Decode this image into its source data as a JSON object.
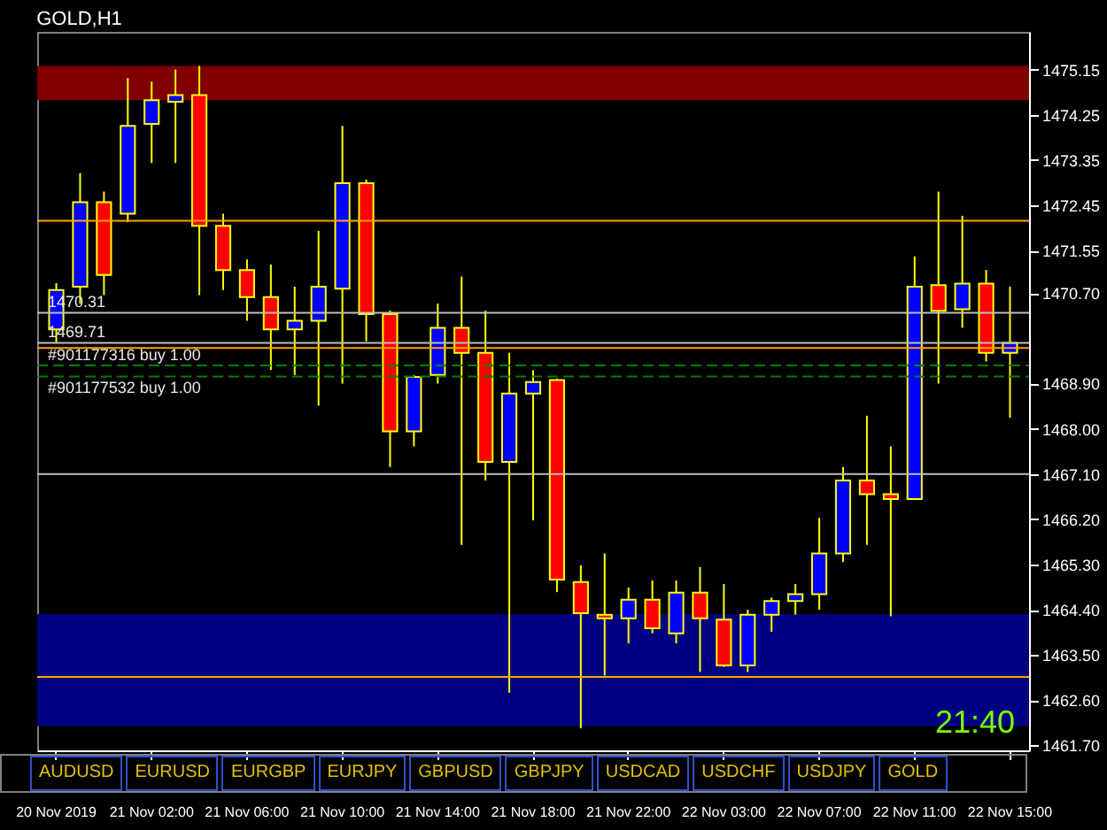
{
  "chart_data": {
    "type": "candlestick",
    "title": "GOLD,H1",
    "categories": [
      "20 Nov 2019",
      null,
      null,
      null,
      "21 Nov 02:00",
      null,
      null,
      null,
      "21 Nov 06:00",
      null,
      null,
      null,
      "21 Nov 10:00",
      null,
      null,
      null,
      "21 Nov 14:00",
      null,
      null,
      null,
      "21 Nov 18:00",
      null,
      null,
      null,
      "21 Nov 22:00",
      null,
      null,
      null,
      "22 Nov 03:00",
      null,
      null,
      null,
      "22 Nov 07:00",
      null,
      null,
      null,
      "22 Nov 11:00",
      null,
      null,
      null,
      "22 Nov 15:00"
    ],
    "ohlc": [
      [
        1469.98,
        1470.9,
        1469.7,
        1470.76
      ],
      [
        1470.83,
        1473.09,
        1470.49,
        1472.51
      ],
      [
        1472.51,
        1472.72,
        1470.66,
        1471.06
      ],
      [
        1472.28,
        1474.98,
        1472.11,
        1474.03
      ],
      [
        1474.07,
        1474.91,
        1473.29,
        1474.54
      ],
      [
        1474.51,
        1475.15,
        1473.29,
        1474.64
      ],
      [
        1474.64,
        1475.22,
        1470.66,
        1472.04
      ],
      [
        1472.04,
        1472.28,
        1470.76,
        1471.16
      ],
      [
        1471.16,
        1471.37,
        1470.15,
        1470.62
      ],
      [
        1470.62,
        1471.27,
        1469.17,
        1469.98
      ],
      [
        1469.98,
        1470.83,
        1469.07,
        1470.15
      ],
      [
        1470.15,
        1471.94,
        1468.46,
        1470.83
      ],
      [
        1470.79,
        1474.03,
        1468.9,
        1472.89
      ],
      [
        1472.89,
        1472.96,
        1469.74,
        1470.28
      ],
      [
        1470.28,
        1470.35,
        1467.24,
        1467.95
      ],
      [
        1467.95,
        1469.07,
        1467.65,
        1469.03
      ],
      [
        1469.07,
        1470.49,
        1468.9,
        1470.01
      ],
      [
        1470.01,
        1471.03,
        1465.69,
        1469.51
      ],
      [
        1469.51,
        1470.35,
        1466.97,
        1467.34
      ],
      [
        1467.34,
        1469.51,
        1462.75,
        1468.7
      ],
      [
        1468.7,
        1469.17,
        1466.18,
        1468.93
      ],
      [
        1468.97,
        1469.0,
        1464.75,
        1465.0
      ],
      [
        1464.95,
        1465.28,
        1462.04,
        1464.33
      ],
      [
        1464.3,
        1465.52,
        1463.09,
        1464.23
      ],
      [
        1464.23,
        1464.84,
        1463.73,
        1464.6
      ],
      [
        1464.6,
        1464.98,
        1463.93,
        1464.03
      ],
      [
        1463.93,
        1464.98,
        1463.73,
        1464.74
      ],
      [
        1464.74,
        1465.25,
        1463.16,
        1464.23
      ],
      [
        1464.2,
        1464.91,
        1463.26,
        1463.29
      ],
      [
        1463.29,
        1464.4,
        1463.16,
        1464.3
      ],
      [
        1464.3,
        1464.64,
        1463.96,
        1464.57
      ],
      [
        1464.57,
        1464.91,
        1464.3,
        1464.71
      ],
      [
        1464.71,
        1466.23,
        1464.4,
        1465.52
      ],
      [
        1465.52,
        1467.24,
        1465.35,
        1466.97
      ],
      [
        1466.97,
        1468.26,
        1465.69,
        1466.7
      ],
      [
        1466.7,
        1467.65,
        1464.27,
        1466.6
      ],
      [
        1466.6,
        1471.43,
        1466.6,
        1470.83
      ],
      [
        1470.86,
        1472.72,
        1468.9,
        1470.35
      ],
      [
        1470.38,
        1472.24,
        1470.01,
        1470.89
      ],
      [
        1470.89,
        1471.16,
        1469.34,
        1469.51
      ],
      [
        1469.51,
        1470.83,
        1468.22,
        1469.71
      ]
    ],
    "colors": [
      "#0000ff",
      "#0000ff",
      "#ff0000",
      "#0000ff",
      "#0000ff",
      "#0000ff",
      "#ff0000",
      "#ff0000",
      "#ff0000",
      "#ff0000",
      "#0000ff",
      "#0000ff",
      "#0000ff",
      "#ff0000",
      "#ff0000",
      "#0000ff",
      "#0000ff",
      "#ff0000",
      "#ff0000",
      "#0000ff",
      "#0000ff",
      "#ff0000",
      "#ff0000",
      "#ff0000",
      "#0000ff",
      "#ff0000",
      "#0000ff",
      "#ff0000",
      "#ff0000",
      "#0000ff",
      "#0000ff",
      "#0000ff",
      "#0000ff",
      "#0000ff",
      "#ff0000",
      "#ff0000",
      "#0000ff",
      "#ff0000",
      "#0000ff",
      "#ff0000",
      "#0000ff"
    ],
    "ylim": [
      1461.6,
      1475.9
    ],
    "yticks": [
      {
        "value": 1461.7,
        "label": "1461.70"
      },
      {
        "value": 1462.6,
        "label": "1462.60"
      },
      {
        "value": 1463.5,
        "label": "1463.50"
      },
      {
        "value": 1464.4,
        "label": "1464.40"
      },
      {
        "value": 1465.3,
        "label": "1465.30"
      },
      {
        "value": 1466.2,
        "label": "1466.20"
      },
      {
        "value": 1467.1,
        "label": "1467.10"
      },
      {
        "value": 1468.0,
        "label": "1468.00"
      },
      {
        "value": 1468.9,
        "label": "1468.90"
      },
      {
        "value": 1470.7,
        "label": "1470.70"
      },
      1471.55,
      1472.45,
      1473.35,
      1474.25,
      1475.15
    ],
    "grid": false,
    "bands": [
      {
        "axis": "y",
        "from": 1474.54,
        "to": 1475.22,
        "color": "#800000"
      },
      {
        "axis": "y",
        "from": 1462.08,
        "to": 1464.31,
        "color": "#000080"
      }
    ],
    "ref_lines": [
      {
        "axis": "y",
        "value": 1470.31,
        "label": "1470.31",
        "color": "#c0c0c0"
      },
      {
        "axis": "y",
        "value": 1469.71,
        "label": "1469.71",
        "color": "#c0c0c0"
      },
      {
        "axis": "y",
        "value": 1469.26,
        "label": "#901177316 buy 1.00",
        "color": "#008000",
        "line_style": "dashed"
      },
      {
        "axis": "y",
        "value": 1469.04,
        "label": "#901177532 buy 1.00",
        "color": "#008000",
        "line_style": "dashed"
      },
      {
        "axis": "y",
        "value": 1472.14,
        "color": "#ffa500"
      },
      {
        "axis": "y",
        "value": 1469.61,
        "color": "#ffa500"
      },
      {
        "axis": "y",
        "value": 1463.06,
        "color": "#ffa500"
      },
      {
        "axis": "y",
        "value": 1467.1,
        "color": "#c0c0c0"
      }
    ],
    "annotations": [
      "21:40",
      "AUDUSD",
      "EURUSD",
      "EURGBP",
      "EURJPY",
      "GBPUSD",
      "GBPJPY",
      "USDCAD",
      "USDCHF",
      "USDJPY",
      "GOLD"
    ]
  }
}
